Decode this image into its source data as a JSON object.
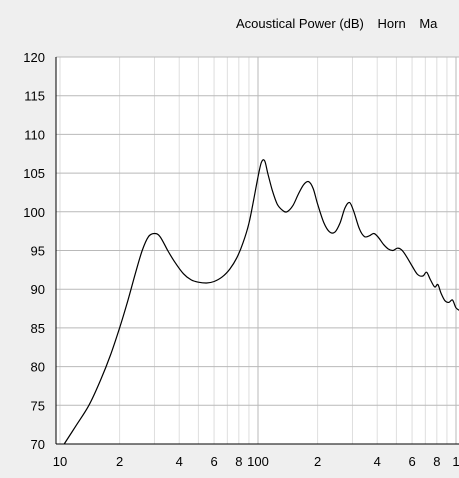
{
  "header": {
    "measure": "Acoustical Power (dB)",
    "item2": "Horn",
    "item3": "Ma"
  },
  "colors": {
    "background": "#efefef",
    "plot_background": "#ffffff",
    "major_grid": "#b9b9b9",
    "minor_grid": "#dedede",
    "curve": "#000000"
  },
  "chart_data": {
    "type": "line",
    "x_scale": "log",
    "xlim": [
      10,
      1050
    ],
    "ylim": [
      70,
      120
    ],
    "grid": true,
    "y_ticks": [
      70,
      75,
      80,
      85,
      90,
      95,
      100,
      105,
      110,
      115,
      120
    ],
    "x_ticks": [
      {
        "value": 10,
        "label": "10"
      },
      {
        "value": 20,
        "label": "2"
      },
      {
        "value": 40,
        "label": "4"
      },
      {
        "value": 60,
        "label": "6"
      },
      {
        "value": 80,
        "label": "8"
      },
      {
        "value": 100,
        "label": "100"
      },
      {
        "value": 200,
        "label": "2"
      },
      {
        "value": 400,
        "label": "4"
      },
      {
        "value": 600,
        "label": "6"
      },
      {
        "value": 800,
        "label": "8"
      },
      {
        "value": 1000,
        "label": "1"
      }
    ],
    "series": [
      {
        "points": [
          [
            10.5,
            70.0
          ],
          [
            12,
            72.3
          ],
          [
            14,
            75.0
          ],
          [
            16,
            78.2
          ],
          [
            18,
            81.5
          ],
          [
            20,
            85.0
          ],
          [
            22,
            88.5
          ],
          [
            24,
            92.0
          ],
          [
            26,
            95.0
          ],
          [
            28,
            96.8
          ],
          [
            30,
            97.2
          ],
          [
            32,
            96.8
          ],
          [
            35,
            95.0
          ],
          [
            38,
            93.5
          ],
          [
            42,
            92.0
          ],
          [
            46,
            91.2
          ],
          [
            50,
            90.9
          ],
          [
            55,
            90.8
          ],
          [
            60,
            91.0
          ],
          [
            66,
            91.6
          ],
          [
            72,
            92.6
          ],
          [
            78,
            94.0
          ],
          [
            84,
            96.0
          ],
          [
            90,
            98.5
          ],
          [
            95,
            101.5
          ],
          [
            100,
            104.5
          ],
          [
            104,
            106.4
          ],
          [
            108,
            106.6
          ],
          [
            112,
            105.0
          ],
          [
            118,
            102.8
          ],
          [
            125,
            101.0
          ],
          [
            133,
            100.2
          ],
          [
            140,
            100.0
          ],
          [
            150,
            100.8
          ],
          [
            160,
            102.3
          ],
          [
            170,
            103.5
          ],
          [
            180,
            103.9
          ],
          [
            190,
            103.0
          ],
          [
            200,
            101.0
          ],
          [
            215,
            98.6
          ],
          [
            230,
            97.4
          ],
          [
            245,
            97.4
          ],
          [
            260,
            98.6
          ],
          [
            275,
            100.5
          ],
          [
            290,
            101.2
          ],
          [
            305,
            100.0
          ],
          [
            325,
            97.8
          ],
          [
            345,
            96.8
          ],
          [
            365,
            96.9
          ],
          [
            385,
            97.2
          ],
          [
            405,
            96.7
          ],
          [
            430,
            95.8
          ],
          [
            455,
            95.2
          ],
          [
            480,
            95.0
          ],
          [
            505,
            95.3
          ],
          [
            530,
            95.1
          ],
          [
            560,
            94.3
          ],
          [
            600,
            93.0
          ],
          [
            640,
            91.9
          ],
          [
            680,
            91.7
          ],
          [
            710,
            92.2
          ],
          [
            740,
            91.3
          ],
          [
            780,
            90.3
          ],
          [
            810,
            90.6
          ],
          [
            840,
            89.5
          ],
          [
            880,
            88.5
          ],
          [
            920,
            88.3
          ],
          [
            960,
            88.6
          ],
          [
            1000,
            87.6
          ],
          [
            1050,
            87.2
          ]
        ]
      }
    ]
  }
}
